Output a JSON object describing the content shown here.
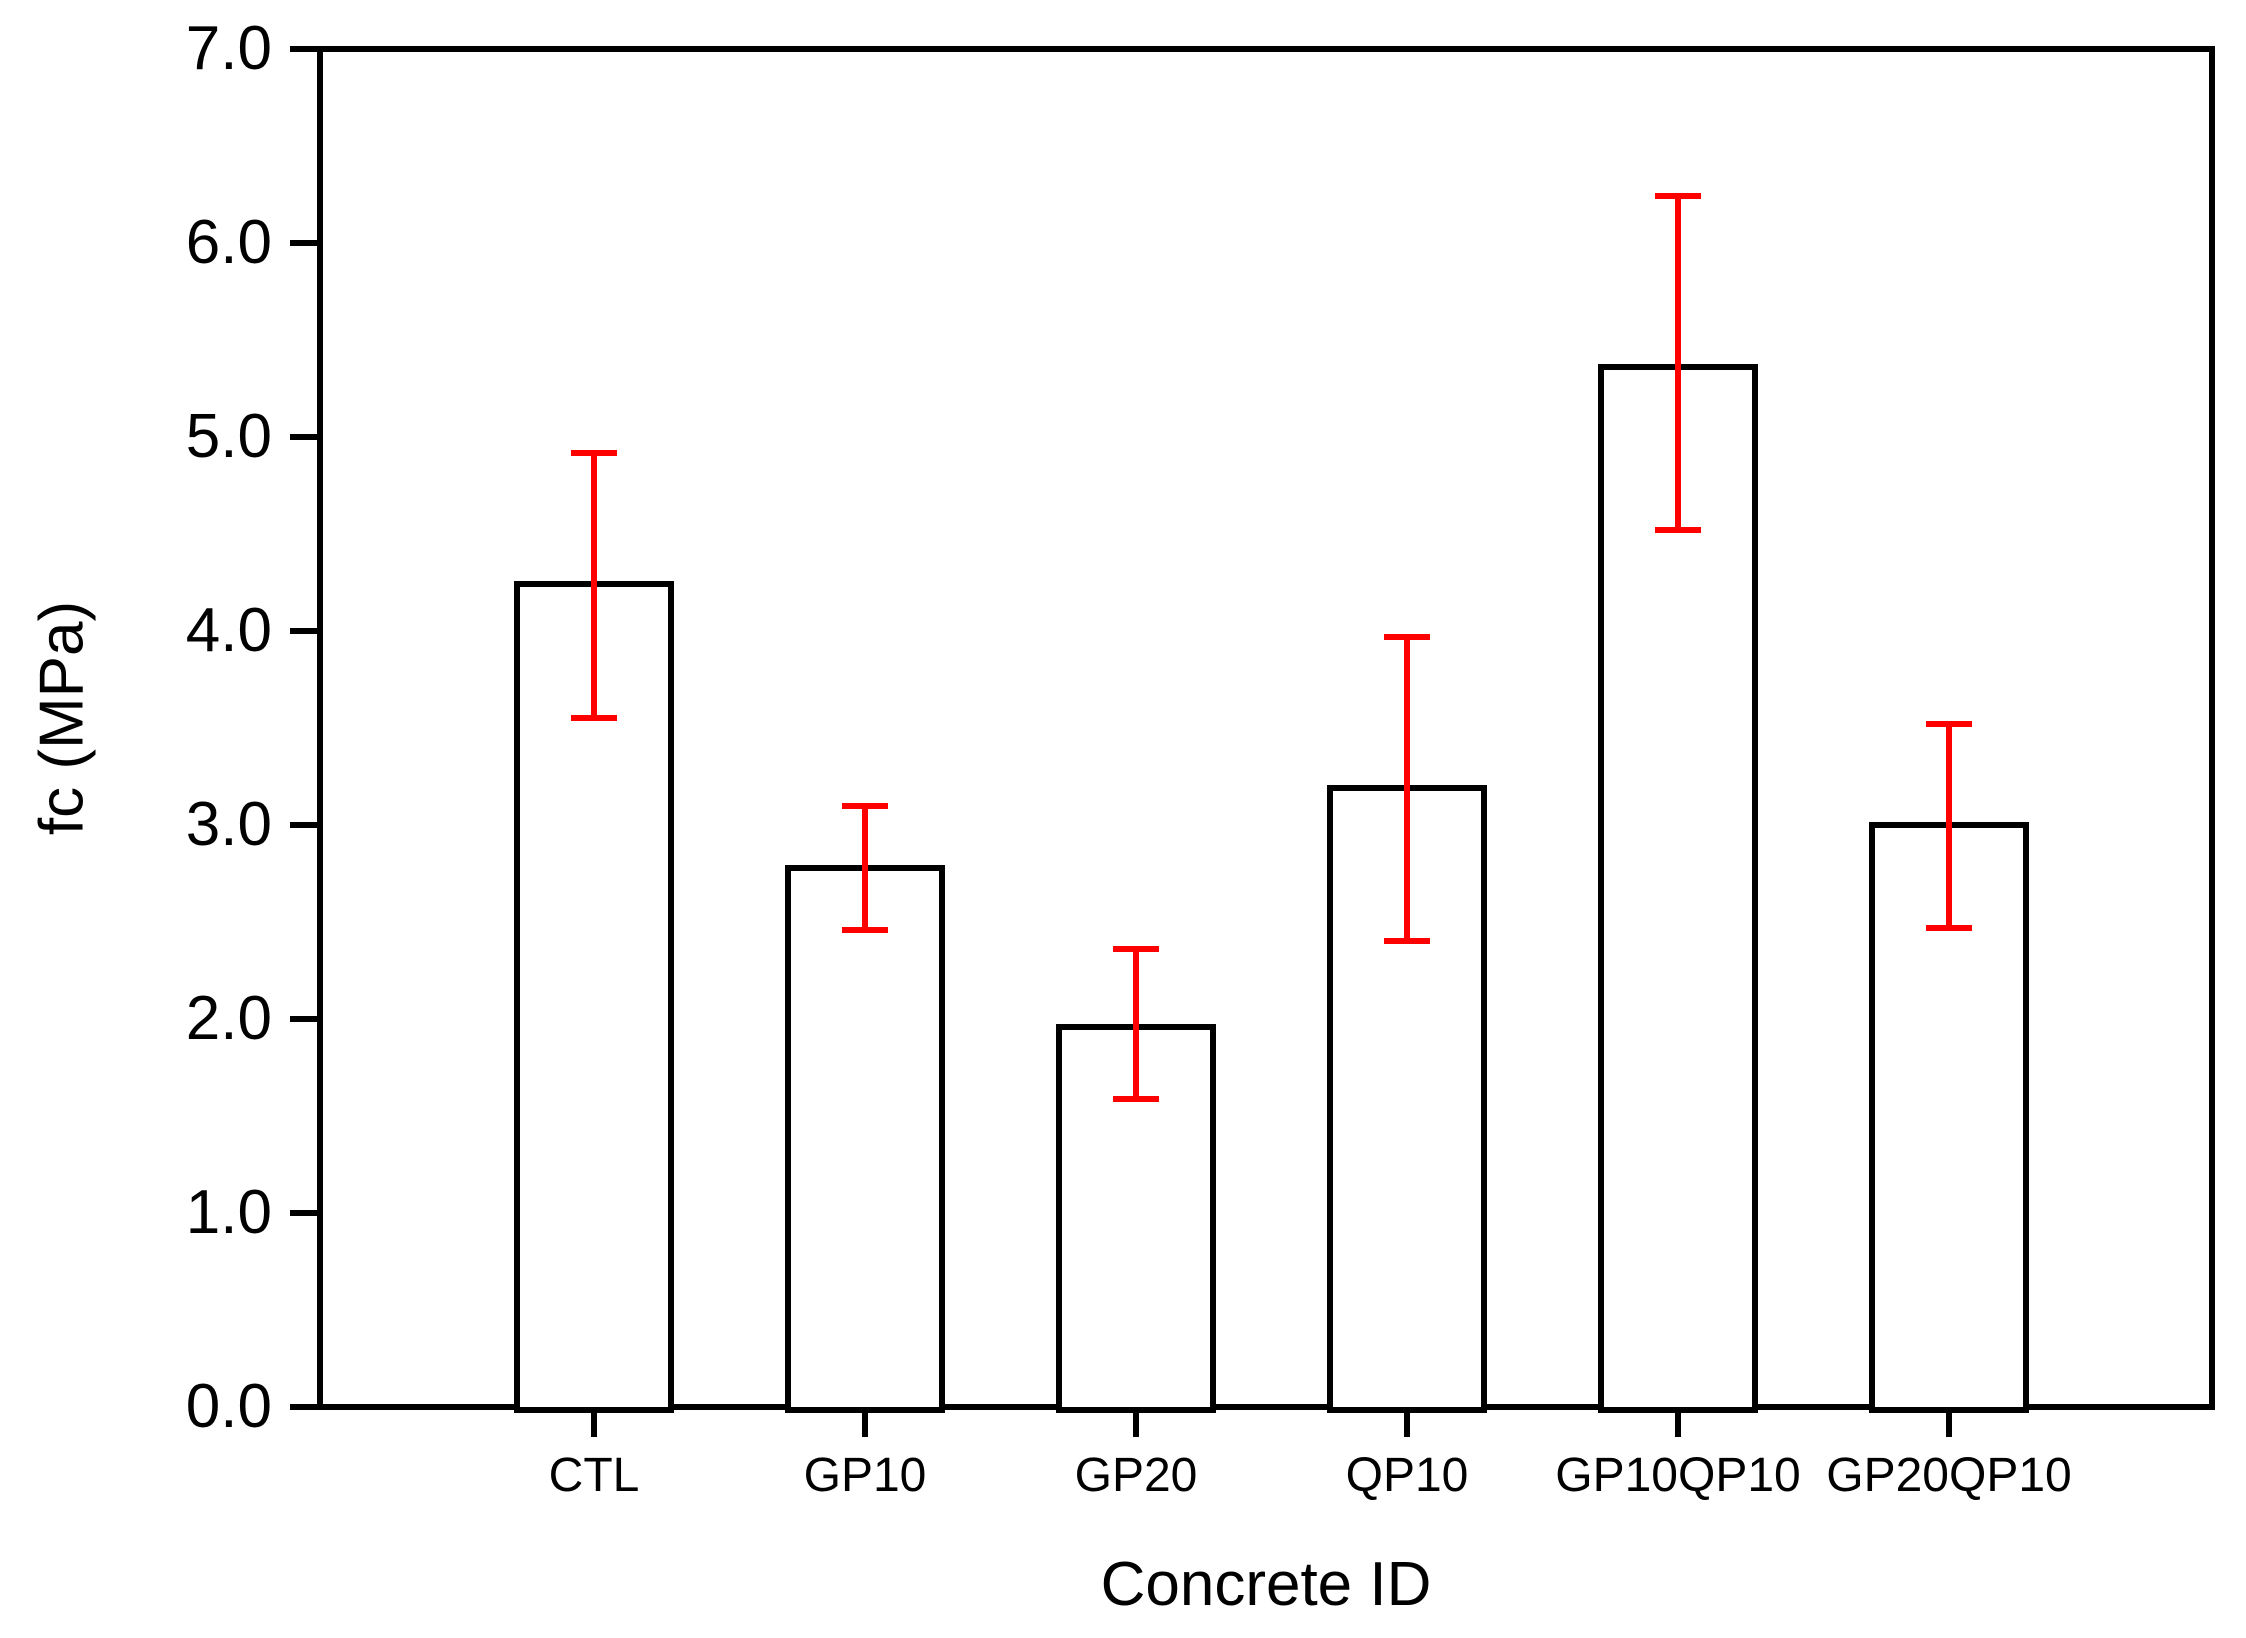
{
  "chart_data": {
    "type": "bar",
    "title": "",
    "xlabel": "Concrete ID",
    "ylabel": "fc (MPa)",
    "categories": [
      "CTL",
      "GP10",
      "GP20",
      "QP10",
      "GP10QP10",
      "GP20QP10"
    ],
    "values": [
      4.24,
      2.78,
      1.96,
      3.19,
      5.36,
      3.0
    ],
    "error_upper_cap": [
      4.92,
      3.1,
      2.36,
      3.97,
      6.24,
      3.52
    ],
    "error_lower_cap": [
      3.55,
      2.46,
      1.59,
      2.4,
      4.52,
      2.47
    ],
    "ylim": [
      0.0,
      7.0
    ],
    "ytick_step": 1.0,
    "ytick_labels": [
      "0.0",
      "1.0",
      "2.0",
      "3.0",
      "4.0",
      "5.0",
      "6.0",
      "7.0"
    ],
    "grid": false,
    "legend": null,
    "bar_fill_color": "#ffffff",
    "bar_outline_color": "#000000",
    "error_bar_color": "#ff0000",
    "text_color": "#000000"
  }
}
